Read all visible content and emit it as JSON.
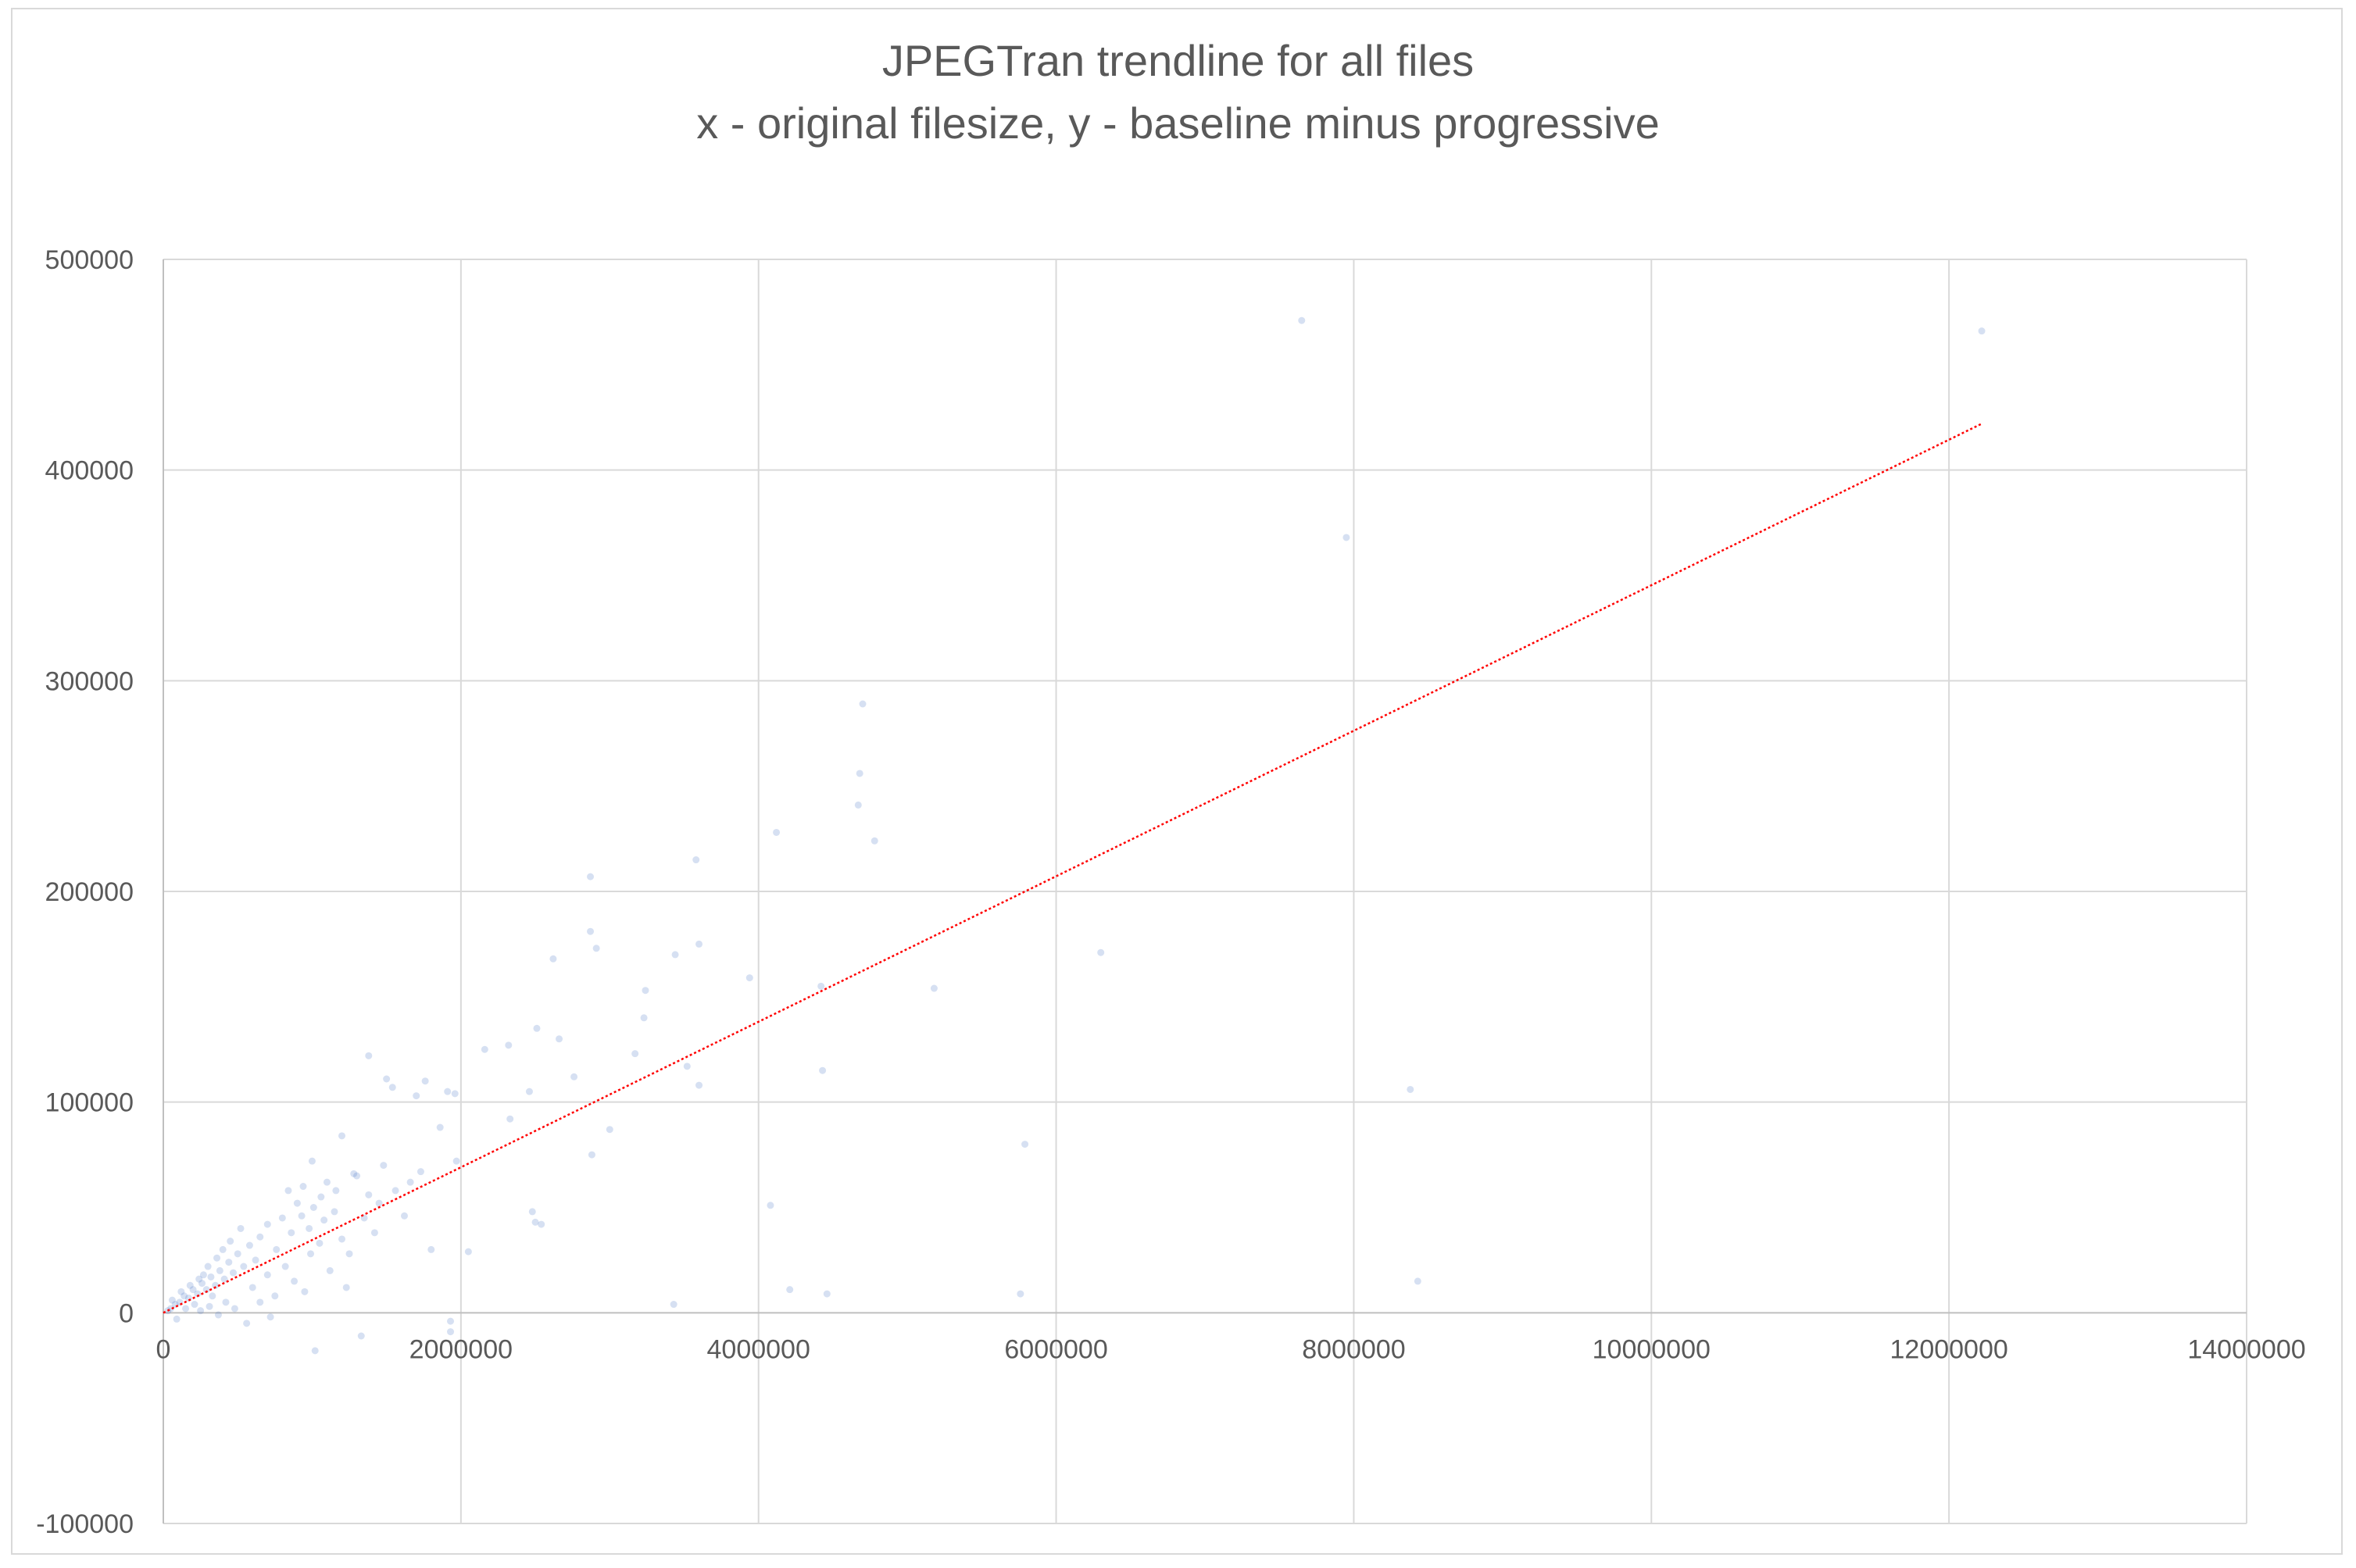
{
  "chart_data": {
    "type": "scatter",
    "title": "JPEGTran trendline for all files",
    "subtitle": "x - original filesize, y - baseline minus progressive",
    "xlabel": "",
    "ylabel": "",
    "xlim": [
      0,
      14000000
    ],
    "ylim": [
      -100000,
      500000
    ],
    "x_ticks": [
      0,
      2000000,
      4000000,
      6000000,
      8000000,
      10000000,
      12000000,
      14000000
    ],
    "x_tick_labels": [
      "0",
      "2000000",
      "4000000",
      "6000000",
      "8000000",
      "10000000",
      "12000000",
      "14000000"
    ],
    "y_ticks": [
      -100000,
      0,
      100000,
      200000,
      300000,
      400000,
      500000
    ],
    "y_tick_labels": [
      "-100000",
      "0",
      "100000",
      "200000",
      "300000",
      "400000",
      "500000"
    ],
    "grid": true,
    "legend": "none",
    "colors": {
      "points": "#4472c4",
      "trendline": "#ff0000",
      "grid": "#d9d9d9",
      "text": "#595959"
    },
    "series": [
      {
        "kind": "points",
        "points": [
          [
            7650000,
            471000
          ],
          [
            12220000,
            466000
          ],
          [
            7950000,
            368000
          ],
          [
            4700000,
            289000
          ],
          [
            4680000,
            256000
          ],
          [
            4670000,
            241000
          ],
          [
            4780000,
            224000
          ],
          [
            4120000,
            228000
          ],
          [
            3580000,
            215000
          ],
          [
            2870000,
            207000
          ],
          [
            2870000,
            181000
          ],
          [
            2910000,
            173000
          ],
          [
            3600000,
            175000
          ],
          [
            3440000,
            170000
          ],
          [
            2620000,
            168000
          ],
          [
            6300000,
            171000
          ],
          [
            5180000,
            154000
          ],
          [
            4420000,
            155000
          ],
          [
            3940000,
            159000
          ],
          [
            3240000,
            153000
          ],
          [
            3230000,
            140000
          ],
          [
            2510000,
            135000
          ],
          [
            2660000,
            130000
          ],
          [
            2320000,
            127000
          ],
          [
            2160000,
            125000
          ],
          [
            3170000,
            123000
          ],
          [
            1380000,
            122000
          ],
          [
            3520000,
            117000
          ],
          [
            4430000,
            115000
          ],
          [
            2760000,
            112000
          ],
          [
            1500000,
            111000
          ],
          [
            1760000,
            110000
          ],
          [
            3600000,
            108000
          ],
          [
            1540000,
            107000
          ],
          [
            2460000,
            105000
          ],
          [
            1910000,
            105000
          ],
          [
            8380000,
            106000
          ],
          [
            1700000,
            103000
          ],
          [
            1960000,
            104000
          ],
          [
            2330000,
            92000
          ],
          [
            1860000,
            88000
          ],
          [
            3000000,
            87000
          ],
          [
            1200000,
            84000
          ],
          [
            5790000,
            80000
          ],
          [
            2880000,
            75000
          ],
          [
            1970000,
            72000
          ],
          [
            1000000,
            72000
          ],
          [
            1730000,
            67000
          ],
          [
            1300000,
            65000
          ],
          [
            2480000,
            48000
          ],
          [
            4080000,
            51000
          ],
          [
            2500000,
            43000
          ],
          [
            2540000,
            42000
          ],
          [
            2050000,
            29000
          ],
          [
            8430000,
            15000
          ],
          [
            4210000,
            11000
          ],
          [
            4460000,
            9000
          ],
          [
            5760000,
            9000
          ],
          [
            3430000,
            4000
          ],
          [
            1930000,
            -4000
          ],
          [
            1330000,
            -11000
          ],
          [
            1020000,
            -18000
          ],
          [
            1930000,
            -9000
          ],
          [
            1200000,
            35000
          ],
          [
            1350000,
            45000
          ],
          [
            1450000,
            52000
          ],
          [
            1560000,
            58000
          ],
          [
            1150000,
            48000
          ],
          [
            1060000,
            55000
          ],
          [
            980000,
            40000
          ],
          [
            1100000,
            62000
          ],
          [
            1250000,
            28000
          ],
          [
            1420000,
            38000
          ],
          [
            1620000,
            46000
          ],
          [
            1800000,
            30000
          ],
          [
            900000,
            52000
          ],
          [
            860000,
            38000
          ],
          [
            940000,
            60000
          ],
          [
            1050000,
            33000
          ],
          [
            800000,
            45000
          ],
          [
            760000,
            30000
          ],
          [
            700000,
            42000
          ],
          [
            650000,
            36000
          ],
          [
            620000,
            25000
          ],
          [
            580000,
            32000
          ],
          [
            540000,
            22000
          ],
          [
            500000,
            28000
          ],
          [
            470000,
            19000
          ],
          [
            440000,
            24000
          ],
          [
            410000,
            16000
          ],
          [
            380000,
            20000
          ],
          [
            350000,
            13000
          ],
          [
            320000,
            17000
          ],
          [
            290000,
            11000
          ],
          [
            260000,
            14000
          ],
          [
            230000,
            9000
          ],
          [
            200000,
            11000
          ],
          [
            170000,
            7000
          ],
          [
            140000,
            8000
          ],
          [
            110000,
            5000
          ],
          [
            80000,
            4000
          ],
          [
            50000,
            2000
          ],
          [
            30000,
            1000
          ],
          [
            600000,
            12000
          ],
          [
            700000,
            18000
          ],
          [
            750000,
            8000
          ],
          [
            820000,
            22000
          ],
          [
            880000,
            15000
          ],
          [
            950000,
            10000
          ],
          [
            520000,
            40000
          ],
          [
            450000,
            34000
          ],
          [
            400000,
            30000
          ],
          [
            360000,
            26000
          ],
          [
            330000,
            8000
          ],
          [
            300000,
            22000
          ],
          [
            270000,
            18000
          ],
          [
            240000,
            16000
          ],
          [
            210000,
            4000
          ],
          [
            180000,
            13000
          ],
          [
            150000,
            2000
          ],
          [
            120000,
            10000
          ],
          [
            90000,
            -3000
          ],
          [
            60000,
            6000
          ],
          [
            650000,
            5000
          ],
          [
            720000,
            -2000
          ],
          [
            560000,
            -5000
          ],
          [
            480000,
            2000
          ],
          [
            420000,
            5000
          ],
          [
            370000,
            -1000
          ],
          [
            310000,
            3000
          ],
          [
            250000,
            1000
          ],
          [
            1120000,
            20000
          ],
          [
            1230000,
            12000
          ],
          [
            990000,
            28000
          ],
          [
            840000,
            58000
          ],
          [
            930000,
            46000
          ],
          [
            1010000,
            50000
          ],
          [
            1080000,
            44000
          ],
          [
            1160000,
            58000
          ],
          [
            1280000,
            66000
          ],
          [
            1380000,
            56000
          ],
          [
            1480000,
            70000
          ],
          [
            1660000,
            62000
          ]
        ]
      },
      {
        "kind": "trendline",
        "points": [
          [
            0,
            0
          ],
          [
            12220000,
            422000
          ]
        ]
      }
    ]
  }
}
